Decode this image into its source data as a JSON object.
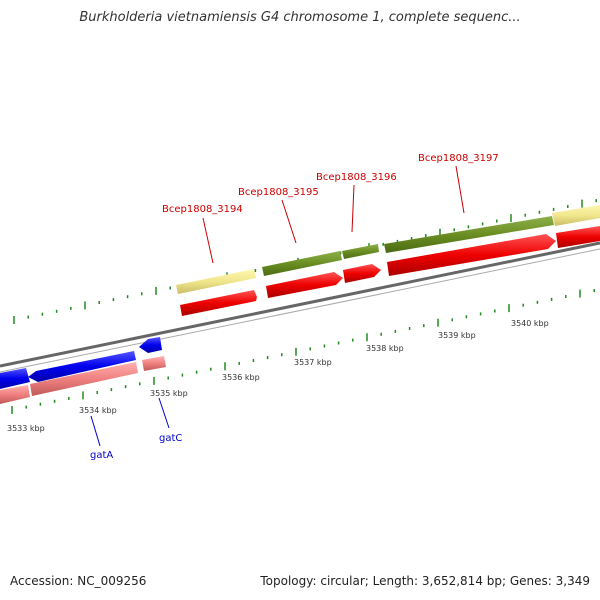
{
  "title": "Burkholderia vietnamiensis G4 chromosome 1, complete sequenc...",
  "footer": {
    "accession": "Accession: NC_009256",
    "topology": "Topology: circular; Length: 3,652,814 bp; Genes: 3,349"
  },
  "scale_labels": [
    "3533 kbp",
    "3534 kbp",
    "3535 kbp",
    "3536 kbp",
    "3537 kbp",
    "3538 kbp",
    "3539 kbp",
    "3540 kbp"
  ],
  "gene_labels": {
    "upper": [
      {
        "name": "Bcep1808_3194",
        "color": "#cc0000"
      },
      {
        "name": "Bcep1808_3195",
        "color": "#cc0000"
      },
      {
        "name": "Bcep1808_3196",
        "color": "#cc0000"
      },
      {
        "name": "Bcep1808_3197",
        "color": "#cc0000"
      }
    ],
    "lower": [
      {
        "name": "gatA",
        "color": "#0000cc"
      },
      {
        "name": "gatC",
        "color": "#0000cc"
      }
    ]
  },
  "colors": {
    "forward_gene": "#ee0000",
    "forward_cds_yellow": "#f0e68c",
    "forward_cds_olive": "#6b8e23",
    "reverse_gene": "#0000ee",
    "reverse_cds_pink": "#f08080",
    "backbone": "#888888",
    "tick": "#228b22"
  }
}
